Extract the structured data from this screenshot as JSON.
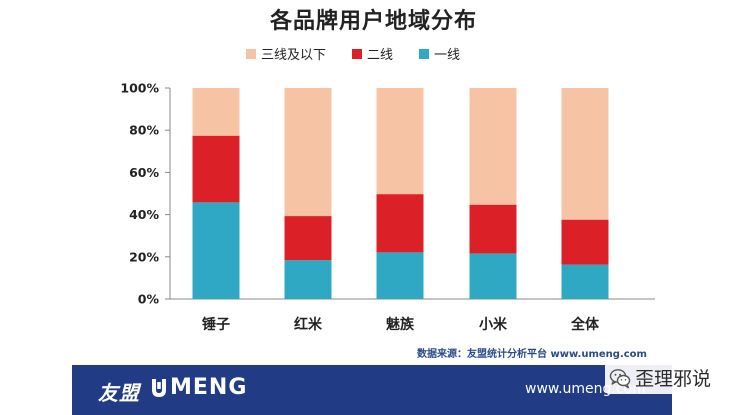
{
  "page": {
    "title": "各品牌用户地域分布",
    "source": "数据来源：友盟统计分析平台 www.umeng.com"
  },
  "footer": {
    "brand_cn": "友盟",
    "brand_en": "MENG",
    "url": "www.umeng.com",
    "color": "#213c85"
  },
  "watermark": {
    "name": "歪理邪说",
    "icon": "wechat-icon"
  },
  "chart_data": {
    "type": "bar",
    "stacked": true,
    "categories": [
      "锤子",
      "红米",
      "魅族",
      "小米",
      "全体"
    ],
    "series": [
      {
        "name": "一线",
        "color": "#2ea8c3",
        "values": [
          45.8,
          18.4,
          22.1,
          21.6,
          16.3
        ]
      },
      {
        "name": "二线",
        "color": "#dc2027",
        "values": [
          31.6,
          20.9,
          27.6,
          23.1,
          21.3
        ]
      },
      {
        "name": "三线及以下",
        "color": "#f7c3a5",
        "values": [
          22.6,
          60.7,
          50.3,
          55.3,
          62.4
        ]
      }
    ],
    "legend_order": [
      "三线及以下",
      "二线",
      "一线"
    ],
    "ylim": [
      0,
      100
    ],
    "yticks": [
      0,
      20,
      40,
      60,
      80,
      100
    ],
    "ytick_labels": [
      "0%",
      "20%",
      "40%",
      "60%",
      "80%",
      "100%"
    ],
    "grid": false,
    "legend_position": "top-center",
    "xlabel": "",
    "ylabel": ""
  }
}
